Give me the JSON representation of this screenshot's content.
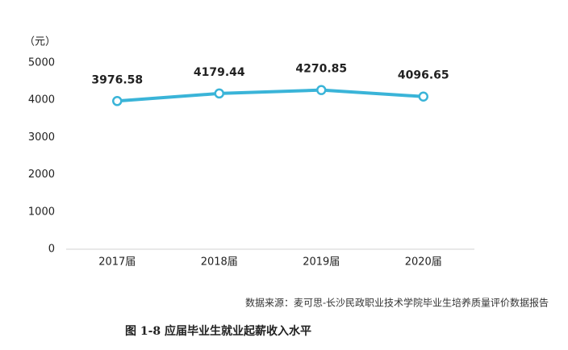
{
  "chart_data": {
    "type": "line",
    "unit_label": "（元）",
    "categories": [
      "2017届",
      "2018届",
      "2019届",
      "2020届"
    ],
    "values": [
      3976.58,
      4179.44,
      4270.85,
      4096.65
    ],
    "color": "#3ab4d8",
    "ylim": [
      0,
      5000
    ],
    "yticks": [
      0,
      1000,
      2000,
      3000,
      4000,
      5000
    ],
    "grid": false,
    "source": "数据来源：麦可思-长沙民政职业技术学院毕业生培养质量评价数据报告",
    "caption": "图 1-8 应届毕业生就业起薪收入水平"
  }
}
